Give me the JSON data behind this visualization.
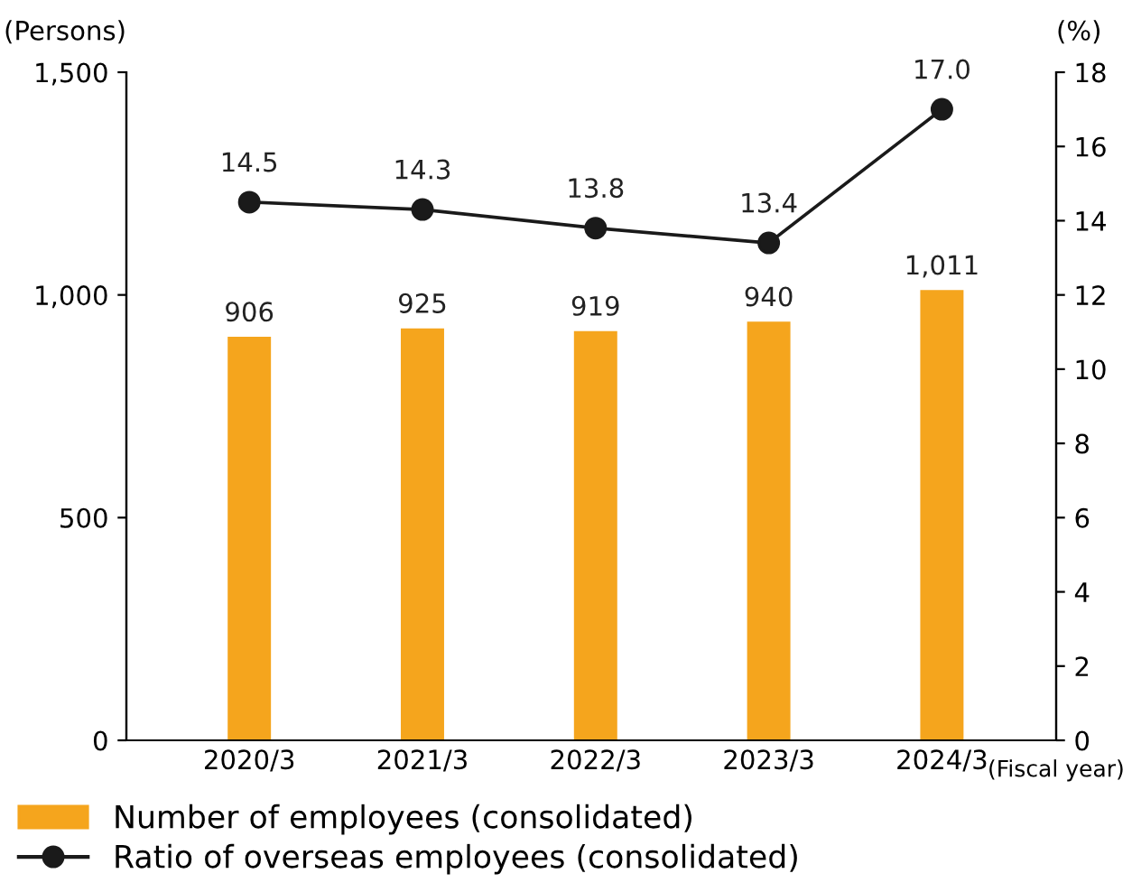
{
  "chart_data": {
    "type": "bar",
    "categories": [
      "2020/3",
      "2021/3",
      "2022/3",
      "2023/3",
      "2024/3"
    ],
    "xlabel": "(Fiscal year)",
    "ylabel": "(Persons)",
    "y2label": "(%)",
    "series": [
      {
        "name": "Number of employees (consolidated)",
        "color": "#f5a51d",
        "values": [
          906,
          925,
          919,
          940,
          1011
        ],
        "value_labels": [
          "906",
          "925",
          "919",
          "940",
          "1,011"
        ]
      },
      {
        "name": "Ratio of overseas employees (consolidated)",
        "type": "line",
        "axis": "y2",
        "color": "#1a1a1a",
        "marker": "circle",
        "values": [
          14.5,
          14.3,
          13.8,
          13.4,
          17.0
        ],
        "value_labels": [
          "14.5",
          "14.3",
          "13.8",
          "13.4",
          "17.0"
        ]
      }
    ],
    "ylim": [
      0,
      1500
    ],
    "yticks": [
      {
        "value": 0,
        "label": "0"
      },
      {
        "value": 500,
        "label": "500"
      },
      {
        "value": 1000,
        "label": "1,000"
      },
      {
        "value": 1500,
        "label": "1,500"
      }
    ],
    "y2lim": [
      0,
      18
    ],
    "y2ticks": [
      0,
      2,
      4,
      6,
      8,
      10,
      12,
      14,
      16,
      18
    ],
    "grid": false,
    "legend": "bottom left"
  }
}
